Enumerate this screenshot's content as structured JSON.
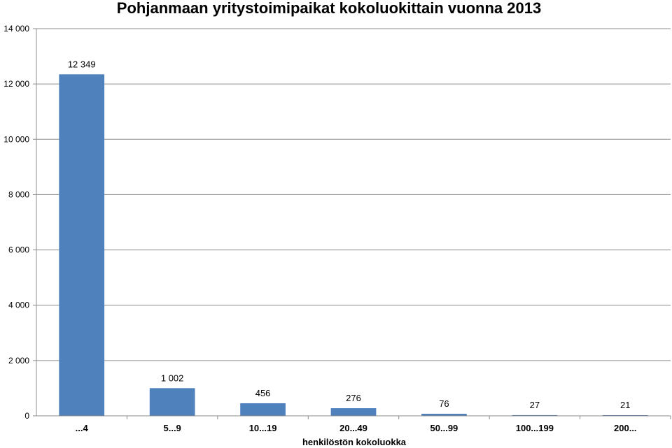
{
  "chart_data": {
    "type": "bar",
    "title": "Pohjanmaan yritystoimipaikat kokoluokittain vuonna 2013",
    "xlabel": "henkilöstön kokoluokka",
    "ylabel": "",
    "categories": [
      "...4",
      "5...9",
      "10...19",
      "20...49",
      "50...99",
      "100...199",
      "200..."
    ],
    "values": [
      12349,
      1002,
      456,
      276,
      76,
      27,
      21
    ],
    "data_labels": [
      "12 349",
      "1 002",
      "456",
      "276",
      "76",
      "27",
      "21"
    ],
    "ylim": [
      0,
      14000
    ],
    "yticks": [
      0,
      2000,
      4000,
      6000,
      8000,
      10000,
      12000,
      14000
    ],
    "ytick_labels": [
      "0",
      "2 000",
      "4 000",
      "6 000",
      "8 000",
      "10 000",
      "12 000",
      "14 000"
    ],
    "grid": true,
    "legend": "none",
    "bar_color": "#4f81bd",
    "grid_color": "#8c8c8c"
  }
}
